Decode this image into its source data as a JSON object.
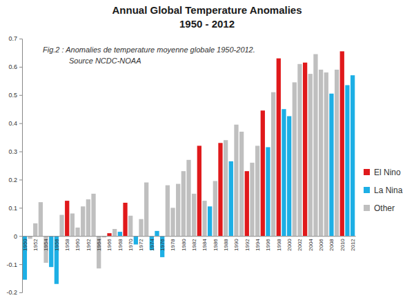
{
  "chart_data": {
    "type": "bar",
    "title": "Annual Global Temperature Anomalies",
    "subtitle": "1950 - 2012",
    "annotations": [
      "Fig.2 : Anomalies de temperature moyenne globale 1950-2012.",
      "Source NCDC-NOAA"
    ],
    "categories": [
      "1950",
      null,
      "1952",
      null,
      "1954",
      null,
      "1956",
      null,
      "1958",
      null,
      "1960",
      null,
      "1962",
      null,
      "1964",
      null,
      "1966",
      null,
      "1968",
      null,
      "1970",
      null,
      "1972",
      null,
      "1974",
      null,
      "1976",
      null,
      "1978",
      null,
      "1980",
      null,
      "1982",
      null,
      "1984",
      null,
      "1986",
      null,
      "1988",
      null,
      "1990",
      null,
      "1992",
      null,
      "1994",
      null,
      "1996",
      null,
      "1998",
      null,
      "2000",
      null,
      "2002",
      null,
      "2004",
      null,
      "2006",
      null,
      "2008",
      null,
      "2010",
      null,
      "2012"
    ],
    "series": [
      {
        "name": "El Nino",
        "color": "#e0191b",
        "values": [
          null,
          null,
          null,
          null,
          null,
          null,
          null,
          null,
          0.125,
          null,
          null,
          null,
          null,
          null,
          null,
          null,
          0.01,
          null,
          null,
          0.118,
          null,
          null,
          null,
          null,
          null,
          null,
          null,
          null,
          null,
          null,
          null,
          null,
          null,
          0.32,
          null,
          null,
          null,
          0.33,
          null,
          null,
          null,
          null,
          0.23,
          null,
          null,
          0.445,
          null,
          null,
          0.63,
          null,
          null,
          null,
          null,
          0.615,
          null,
          null,
          null,
          null,
          null,
          null,
          0.655,
          null,
          null
        ]
      },
      {
        "name": "La Nina",
        "color": "#1dafe5",
        "values": [
          -0.155,
          null,
          null,
          null,
          null,
          -0.11,
          -0.17,
          null,
          null,
          null,
          null,
          null,
          null,
          null,
          null,
          null,
          null,
          null,
          0.015,
          null,
          null,
          -0.03,
          null,
          null,
          -0.05,
          0.018,
          -0.075,
          null,
          null,
          null,
          null,
          null,
          null,
          null,
          null,
          0.105,
          null,
          null,
          null,
          0.265,
          null,
          null,
          null,
          null,
          null,
          null,
          0.315,
          null,
          null,
          0.45,
          0.425,
          null,
          null,
          null,
          null,
          null,
          null,
          null,
          0.505,
          null,
          null,
          0.535,
          0.57
        ]
      },
      {
        "name": "Other",
        "color": "#bfbfbf",
        "values": [
          null,
          -0.01,
          0.045,
          0.12,
          -0.095,
          null,
          null,
          0.075,
          null,
          0.08,
          0.03,
          0.105,
          0.13,
          0.15,
          -0.115,
          -0.005,
          null,
          0.025,
          null,
          null,
          0.072,
          null,
          0.06,
          0.19,
          null,
          null,
          null,
          0.18,
          0.1,
          0.185,
          0.23,
          0.27,
          0.15,
          null,
          0.125,
          null,
          0.195,
          null,
          0.34,
          null,
          0.395,
          0.37,
          null,
          0.26,
          0.32,
          null,
          null,
          0.51,
          null,
          null,
          null,
          0.545,
          0.61,
          null,
          0.575,
          0.645,
          0.59,
          0.58,
          null,
          0.59,
          null,
          null,
          null
        ]
      }
    ],
    "ylim": [
      -0.2,
      0.7
    ],
    "yticks": [
      -0.2,
      -0.1,
      0,
      0.1,
      0.2,
      0.3,
      0.4,
      0.5,
      0.6,
      0.7
    ],
    "grid": false,
    "legend": "right"
  }
}
